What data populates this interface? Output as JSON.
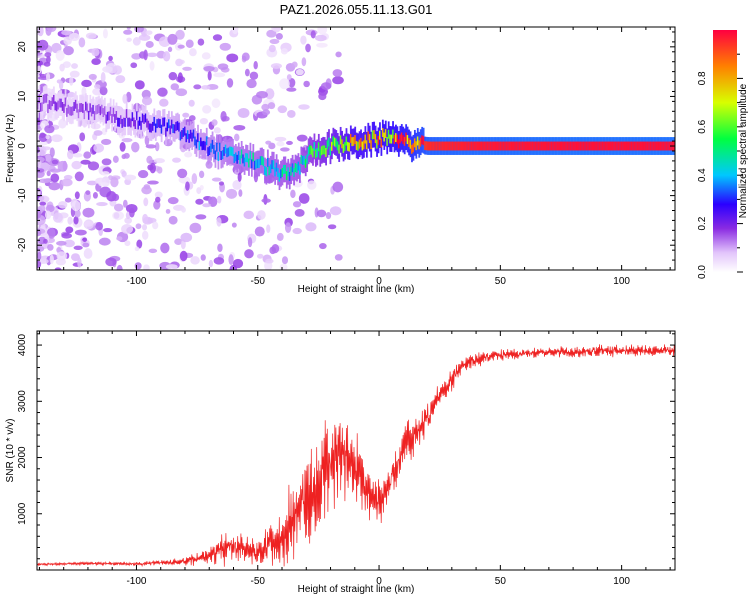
{
  "chart_data": [
    {
      "type": "heatmap",
      "title": "PAZ1.2026.055.11.13.G01",
      "xlabel": "Height of straight line (km)",
      "ylabel": "Frequency (Hz)",
      "xlim": [
        -141,
        122
      ],
      "ylim": [
        -25,
        24
      ],
      "xticks": [
        -100,
        -50,
        0,
        50,
        100
      ],
      "yticks": [
        20,
        10,
        0,
        -10,
        -20
      ],
      "colorbar": {
        "label": "Normalized spectral amplitude",
        "range": [
          0,
          1
        ],
        "ticks": [
          0.0,
          0.2,
          0.4,
          0.6,
          0.8
        ],
        "tick_labels": [
          "0.0",
          "0.2",
          "0.4",
          "0.6",
          "0.8"
        ],
        "stops": [
          {
            "value": 0.0,
            "color": "#ffffff"
          },
          {
            "value": 0.08,
            "color": "#e2c4fb"
          },
          {
            "value": 0.18,
            "color": "#8a2be2"
          },
          {
            "value": 0.28,
            "color": "#2a00ff"
          },
          {
            "value": 0.4,
            "color": "#00c8ff"
          },
          {
            "value": 0.55,
            "color": "#00ff40"
          },
          {
            "value": 0.7,
            "color": "#d8ff00"
          },
          {
            "value": 0.85,
            "color": "#ff8000"
          },
          {
            "value": 1.0,
            "color": "#ff0040"
          }
        ]
      },
      "ridge": {
        "x": [
          -141,
          -120,
          -100,
          -85,
          -75,
          -65,
          -55,
          -45,
          -38,
          -33,
          -28,
          -20,
          -12,
          -5,
          0,
          5,
          12,
          20,
          40,
          80,
          122
        ],
        "freq": [
          9,
          7,
          5,
          3.5,
          1,
          -1.5,
          -2.5,
          -4.5,
          -6,
          -4,
          -1,
          0,
          0.5,
          1,
          1.5,
          2,
          0.5,
          0,
          0,
          0,
          0
        ],
        "amplitude": [
          0.15,
          0.17,
          0.22,
          0.28,
          0.32,
          0.36,
          0.4,
          0.42,
          0.44,
          0.45,
          0.5,
          0.6,
          0.72,
          0.75,
          0.78,
          0.8,
          0.85,
          0.95,
          0.97,
          0.98,
          0.98
        ]
      }
    },
    {
      "type": "line",
      "xlabel": "Height of straight line (km)",
      "ylabel": "SNR (10 * v/v)",
      "xlim": [
        -141,
        122
      ],
      "ylim": [
        0,
        4250
      ],
      "xticks": [
        -100,
        -50,
        0,
        50,
        100
      ],
      "yticks": [
        1000,
        2000,
        3000,
        4000
      ],
      "color": "#ee2222",
      "series": [
        {
          "name": "SNR",
          "x": [
            -141,
            -120,
            -100,
            -90,
            -80,
            -70,
            -65,
            -60,
            -55,
            -50,
            -45,
            -40,
            -35,
            -30,
            -25,
            -20,
            -15,
            -10,
            -5,
            0,
            5,
            10,
            15,
            20,
            25,
            30,
            35,
            40,
            45,
            50,
            60,
            70,
            80,
            90,
            100,
            110,
            122
          ],
          "y": [
            100,
            120,
            110,
            130,
            150,
            250,
            350,
            420,
            380,
            300,
            450,
            600,
            900,
            1200,
            1500,
            1900,
            2000,
            1900,
            1400,
            1200,
            1600,
            2200,
            2400,
            2700,
            3100,
            3400,
            3650,
            3750,
            3800,
            3820,
            3850,
            3870,
            3880,
            3900,
            3900,
            3900,
            3900
          ],
          "noise": [
            20,
            25,
            30,
            40,
            60,
            150,
            250,
            300,
            280,
            250,
            350,
            500,
            700,
            800,
            800,
            750,
            700,
            600,
            400,
            350,
            350,
            350,
            300,
            280,
            220,
            180,
            150,
            120,
            100,
            90,
            80,
            80,
            90,
            100,
            90,
            90,
            90
          ]
        }
      ]
    }
  ]
}
